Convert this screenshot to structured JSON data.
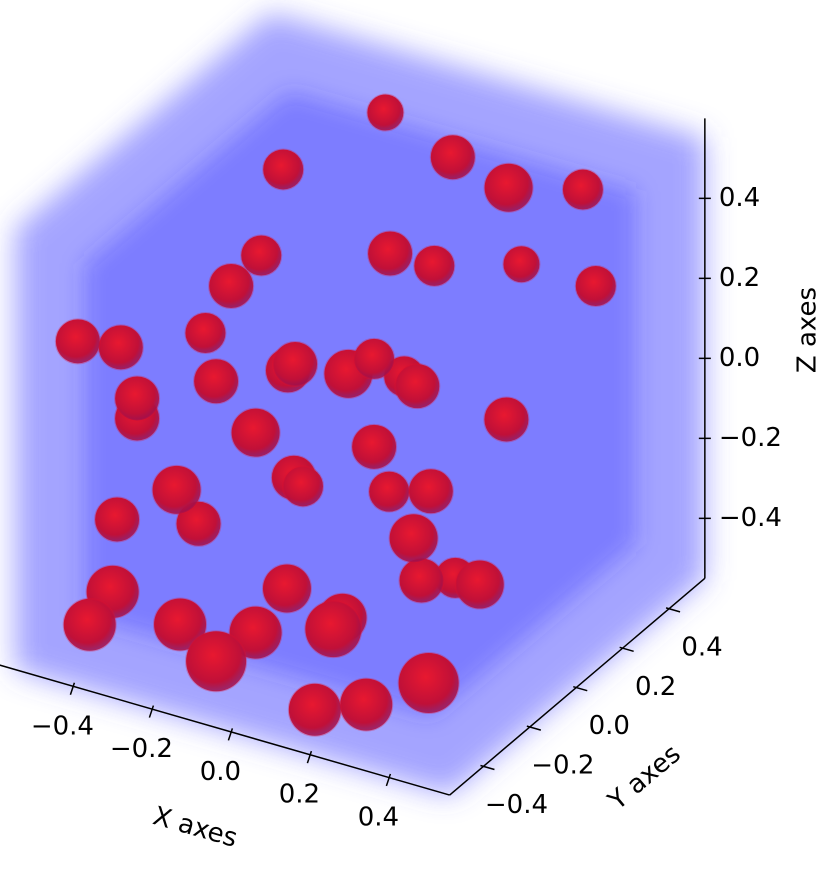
{
  "chart_data": {
    "type": "scatter3d",
    "xlabel": "X axes",
    "ylabel": "Y axes",
    "zlabel": "Z axes",
    "xlim": [
      -0.55,
      0.55
    ],
    "ylim": [
      -0.55,
      0.55
    ],
    "zlim": [
      -0.55,
      0.55
    ],
    "xticks": [
      {
        "value": -0.4,
        "label": "−0.4"
      },
      {
        "value": -0.2,
        "label": "−0.2"
      },
      {
        "value": 0,
        "label": "0.0"
      },
      0.2,
      0.4
    ],
    "yticks": [
      {
        "value": -0.4,
        "label": "−0.4"
      },
      {
        "value": -0.2,
        "label": "−0.2"
      },
      {
        "value": 0,
        "label": "0.0"
      },
      0.2,
      0.4
    ],
    "zticks": [
      {
        "value": -0.4,
        "label": "−0.4"
      },
      {
        "value": -0.2,
        "label": "−0.2"
      },
      {
        "value": 0,
        "label": "0.0"
      },
      0.2,
      0.4
    ],
    "cube_color": "#5a5aff",
    "point_color": "#dd1030",
    "x": [
      -0.2,
      0.3,
      0.0,
      -0.4,
      0.2,
      0.45,
      -0.1,
      0.35,
      -0.3,
      0.1,
      0.4,
      -0.45,
      0.15,
      -0.25,
      0.0,
      0.3,
      -0.35,
      0.2,
      -0.05,
      0.45,
      -0.15,
      0.25,
      -0.4,
      0.05,
      0.38,
      -0.3,
      0.12,
      -0.45,
      0.3,
      -0.2,
      0.0,
      0.42,
      -0.38,
      0.22,
      -0.1,
      0.35,
      -0.45,
      0.1,
      -0.25,
      0.05,
      0.28,
      -0.42,
      -0.1,
      0.4,
      0.15,
      -0.3,
      0.0,
      0.3
    ],
    "y": [
      0.45,
      0.45,
      0.4,
      0.35,
      0.3,
      0.25,
      0.3,
      0.1,
      0.2,
      0.15,
      -0.05,
      0.1,
      0.05,
      0.0,
      -0.05,
      -0.1,
      -0.1,
      -0.15,
      -0.2,
      -0.25,
      -0.3,
      -0.3,
      -0.35,
      -0.4,
      -0.4,
      -0.45,
      -0.45,
      -0.45,
      -0.45,
      -0.45,
      -0.45,
      -0.45,
      -0.4,
      -0.45,
      -0.45,
      -0.3,
      -0.3,
      -0.45,
      -0.35,
      -0.2,
      -0.45,
      -0.45,
      -0.45,
      -0.45,
      -0.45,
      -0.45,
      -0.45,
      -0.45
    ],
    "z": [
      0.45,
      0.4,
      0.42,
      0.3,
      0.45,
      0.3,
      0.2,
      0.4,
      -0.1,
      0.3,
      0.1,
      0.0,
      -0.2,
      0.3,
      0.1,
      -0.3,
      -0.35,
      0.2,
      -0.1,
      -0.2,
      0.4,
      0.0,
      0.2,
      -0.25,
      0.35,
      0.1,
      0.05,
      0.25,
      0.2,
      -0.05,
      -0.35,
      -0.1,
      -0.2,
      -0.25,
      0.25,
      -0.45,
      -0.45,
      0.35,
      -0.45,
      -0.45,
      -0.45,
      -0.45,
      -0.45,
      0.0,
      -0.5,
      0.15,
      0.15,
      0.42
    ],
    "size": [
      18,
      20,
      22,
      20,
      24,
      20,
      22,
      18,
      22,
      20,
      22,
      20,
      22,
      20,
      24,
      20,
      22,
      20,
      22,
      24,
      22,
      20,
      22,
      24,
      22,
      22,
      20,
      22,
      22,
      24,
      26,
      22,
      22,
      24,
      22,
      30,
      26,
      22,
      26,
      28,
      26,
      26,
      30,
      24,
      26,
      22,
      24,
      20
    ]
  }
}
